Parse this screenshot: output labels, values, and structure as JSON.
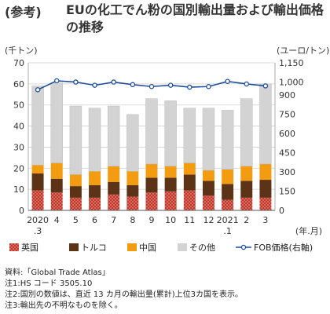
{
  "title": {
    "prefix": "(参考)",
    "main": "EUの化工でん粉の国別輸出量および輸出価格の推移"
  },
  "units": {
    "left": "(千トン)",
    "right": "(ユーロ/トン)",
    "x": "(年.月)"
  },
  "notes": [
    "資料:「Global Trade Atlas」",
    "注1:HS コード 3505.10",
    "注2:国別の数値は、直近 13 カ月の輸出量(累計)上位3カ国を表示。",
    "注3:輸出先の不明なものを除く。"
  ],
  "colors": {
    "uk": "#c00000",
    "turkey": "#5c3317",
    "china": "#f39c12",
    "other": "#d3d3d3",
    "fob": "#1f4e9a"
  },
  "chart_data": {
    "type": "bar",
    "stacked": true,
    "categories": [
      "2020.3",
      "4",
      "5",
      "6",
      "7",
      "8",
      "9",
      "10",
      "11",
      "12",
      "2021.1",
      "2",
      "3"
    ],
    "tick_labels": [
      [
        "2020",
        ".3"
      ],
      [
        "4"
      ],
      [
        "5"
      ],
      [
        "6"
      ],
      [
        "7"
      ],
      [
        "8"
      ],
      [
        "9"
      ],
      [
        "10"
      ],
      [
        "11"
      ],
      [
        "12"
      ],
      [
        "2021",
        ".1"
      ],
      [
        "2"
      ],
      [
        "3"
      ]
    ],
    "series": [
      {
        "name": "英国",
        "values": [
          9.5,
          8.5,
          6,
          6,
          7.5,
          6.5,
          8.5,
          9,
          9.5,
          7,
          5,
          6,
          6
        ]
      },
      {
        "name": "トルコ",
        "values": [
          8,
          6.5,
          5.5,
          6,
          6,
          5.5,
          7,
          6.5,
          7.5,
          7,
          7.5,
          8,
          8.5
        ]
      },
      {
        "name": "中国",
        "values": [
          4,
          7.5,
          5.5,
          6.5,
          7.5,
          6.5,
          6.5,
          5.5,
          5.5,
          5,
          7,
          7,
          7.5
        ]
      },
      {
        "name": "その他",
        "values": [
          37.5,
          38,
          32.5,
          30,
          28.5,
          27,
          31,
          31,
          26,
          29.5,
          28,
          32,
          38
        ]
      }
    ],
    "line": {
      "name": "FOB価格(右軸)",
      "axis": "right",
      "values": [
        940,
        1010,
        1000,
        975,
        1000,
        980,
        965,
        975,
        960,
        965,
        1005,
        985,
        970
      ]
    },
    "y_left": {
      "min": 0,
      "max": 70,
      "ticks": [
        0,
        10,
        20,
        30,
        40,
        50,
        60,
        70
      ]
    },
    "y_right": {
      "min": 0,
      "max": 1150,
      "ticks": [
        0,
        150,
        300,
        450,
        600,
        750,
        900,
        1000,
        1150
      ]
    },
    "legend": [
      "英国",
      "トルコ",
      "中国",
      "その他",
      "FOB価格(右軸)"
    ]
  }
}
